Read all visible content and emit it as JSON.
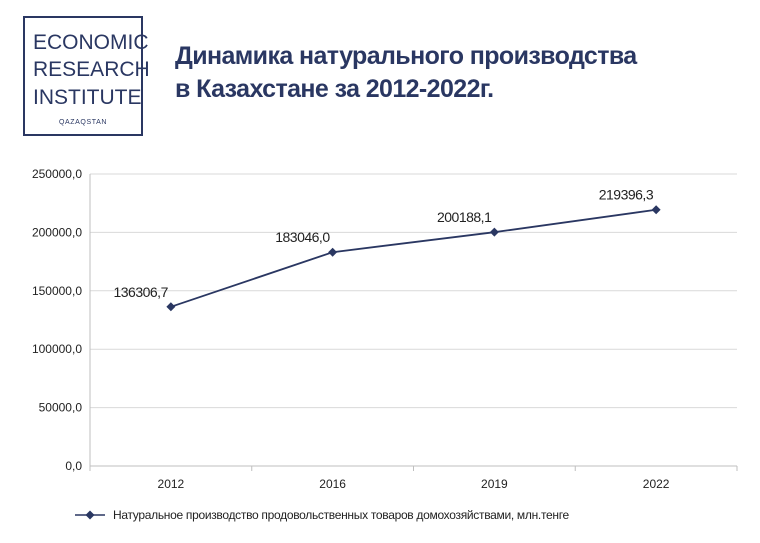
{
  "logo": {
    "line1": "ECONOMIC",
    "line2": "RESEARCH",
    "line3": "INSTITUTE",
    "sub": "QAZAQSTAN"
  },
  "title": {
    "line1": "Динамика натурального производства",
    "line2": "в Казахстане за 2012-2022г."
  },
  "colors": {
    "series": "#2a3762",
    "grid": "#d9d9d9",
    "axis": "#bfbfbf"
  },
  "chart_data": {
    "type": "line",
    "categories": [
      "2012",
      "2016",
      "2019",
      "2022"
    ],
    "series": [
      {
        "name": "Натуральное производство продовольственных товаров домохозяйствами, млн.тенге",
        "values": [
          136306.7,
          183046.0,
          200188.1,
          219396.3
        ],
        "labels": [
          "136306,7",
          "183046,0",
          "200188,1",
          "219396,3"
        ],
        "marker": "diamond"
      }
    ],
    "ylim": [
      0,
      250000
    ],
    "yticks": [
      "0,0",
      "50000,0",
      "100000,0",
      "150000,0",
      "200000,0",
      "250000,0"
    ],
    "grid": true,
    "legend": "bottom"
  }
}
